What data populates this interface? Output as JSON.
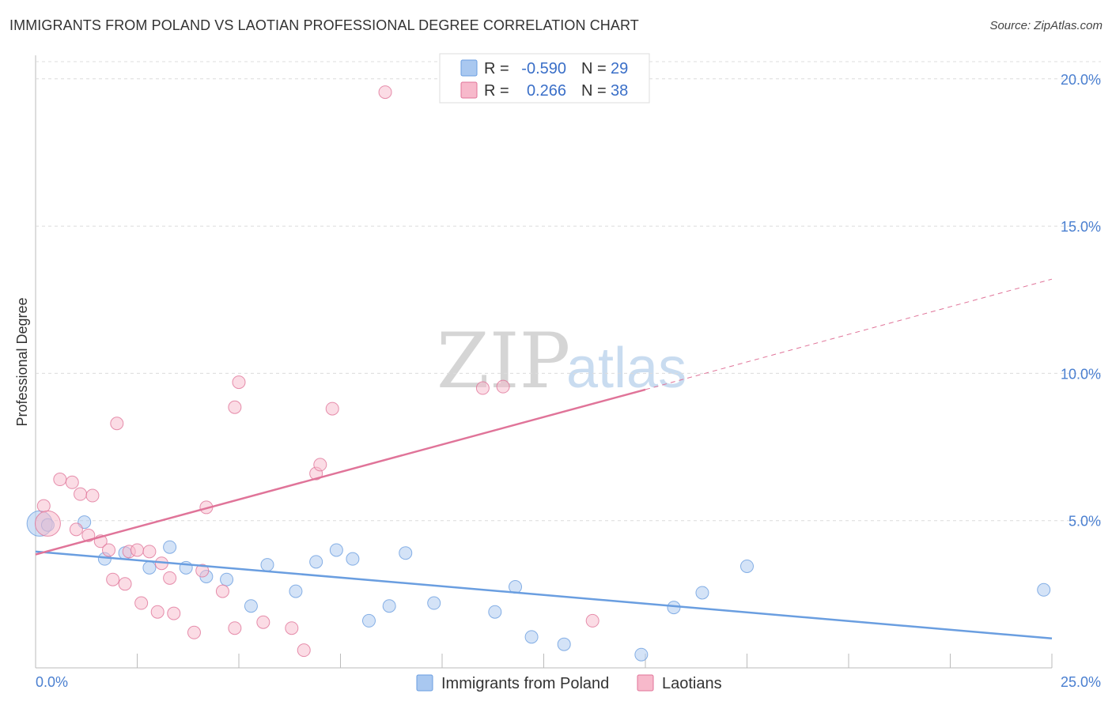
{
  "title": "IMMIGRANTS FROM POLAND VS LAOTIAN PROFESSIONAL DEGREE CORRELATION CHART",
  "source": "Source: ZipAtlas.com",
  "watermark": {
    "zip": "ZIP",
    "atlas": "atlas"
  },
  "legend": {
    "r_label": "R =",
    "n_label": "N =",
    "rows": [
      {
        "r": "-0.590",
        "n": "29",
        "color": "#a9c8f0"
      },
      {
        "r": "0.266",
        "n": "38",
        "color": "#f7b9cb"
      }
    ]
  },
  "chart_data": {
    "type": "scatter",
    "title": "IMMIGRANTS FROM POLAND VS LAOTIAN PROFESSIONAL DEGREE CORRELATION CHART",
    "xlabel": "",
    "ylabel": "Professional Degree",
    "xlim": [
      0,
      25
    ],
    "ylim": [
      0,
      20.8
    ],
    "x_tick_labels": [
      "0.0%",
      "25.0%"
    ],
    "y_ticks": [
      5,
      10,
      15,
      20
    ],
    "y_tick_labels": [
      "5.0%",
      "10.0%",
      "15.0%",
      "20.0%"
    ],
    "grid": true,
    "legend_position": "top-center",
    "series": [
      {
        "name": "Immigrants from Poland",
        "color": "#6a9ee0",
        "fill": "#a9c8f0",
        "trend": {
          "x": [
            0,
            25
          ],
          "y": [
            3.95,
            1.0
          ]
        },
        "points": [
          [
            0.1,
            4.9
          ],
          [
            1.2,
            4.95
          ],
          [
            1.7,
            3.7
          ],
          [
            2.2,
            3.9
          ],
          [
            2.8,
            3.4
          ],
          [
            3.3,
            4.1
          ],
          [
            3.7,
            3.4
          ],
          [
            4.2,
            3.1
          ],
          [
            4.7,
            3.0
          ],
          [
            5.3,
            2.1
          ],
          [
            5.7,
            3.5
          ],
          [
            6.4,
            2.6
          ],
          [
            6.9,
            3.6
          ],
          [
            7.4,
            4.0
          ],
          [
            7.8,
            3.7
          ],
          [
            8.2,
            1.6
          ],
          [
            8.7,
            2.1
          ],
          [
            9.1,
            3.9
          ],
          [
            9.8,
            2.2
          ],
          [
            11.3,
            1.9
          ],
          [
            11.8,
            2.75
          ],
          [
            12.2,
            1.05
          ],
          [
            13.0,
            0.8
          ],
          [
            14.9,
            0.45
          ],
          [
            15.7,
            2.05
          ],
          [
            16.4,
            2.55
          ],
          [
            17.5,
            3.45
          ],
          [
            24.8,
            2.65
          ],
          [
            0.3,
            4.85
          ]
        ]
      },
      {
        "name": "Laotians",
        "color": "#e07499",
        "fill": "#f7b9cb",
        "trend": {
          "x": [
            0,
            15
          ],
          "y": [
            3.85,
            9.45
          ]
        },
        "trend_dashed": {
          "x": [
            15,
            25
          ],
          "y": [
            9.45,
            13.2
          ]
        },
        "points": [
          [
            0.2,
            5.5
          ],
          [
            0.3,
            4.9
          ],
          [
            0.6,
            6.4
          ],
          [
            0.9,
            6.3
          ],
          [
            1.0,
            4.7
          ],
          [
            1.1,
            5.9
          ],
          [
            1.3,
            4.5
          ],
          [
            1.4,
            5.85
          ],
          [
            1.6,
            4.3
          ],
          [
            1.8,
            4.0
          ],
          [
            1.9,
            3.0
          ],
          [
            2.0,
            8.3
          ],
          [
            2.2,
            2.85
          ],
          [
            2.3,
            3.95
          ],
          [
            2.5,
            4.0
          ],
          [
            2.6,
            2.2
          ],
          [
            2.8,
            3.95
          ],
          [
            3.0,
            1.9
          ],
          [
            3.1,
            3.55
          ],
          [
            3.3,
            3.05
          ],
          [
            3.4,
            1.85
          ],
          [
            3.9,
            1.2
          ],
          [
            4.1,
            3.3
          ],
          [
            4.6,
            2.6
          ],
          [
            4.9,
            1.35
          ],
          [
            4.9,
            8.85
          ],
          [
            5.0,
            9.7
          ],
          [
            5.6,
            1.55
          ],
          [
            6.3,
            1.35
          ],
          [
            6.6,
            0.6
          ],
          [
            6.9,
            6.6
          ],
          [
            7.0,
            6.9
          ],
          [
            7.3,
            8.8
          ],
          [
            8.6,
            19.55
          ],
          [
            11.0,
            9.5
          ],
          [
            11.5,
            9.55
          ],
          [
            13.7,
            1.6
          ],
          [
            4.2,
            5.45
          ]
        ]
      }
    ]
  }
}
